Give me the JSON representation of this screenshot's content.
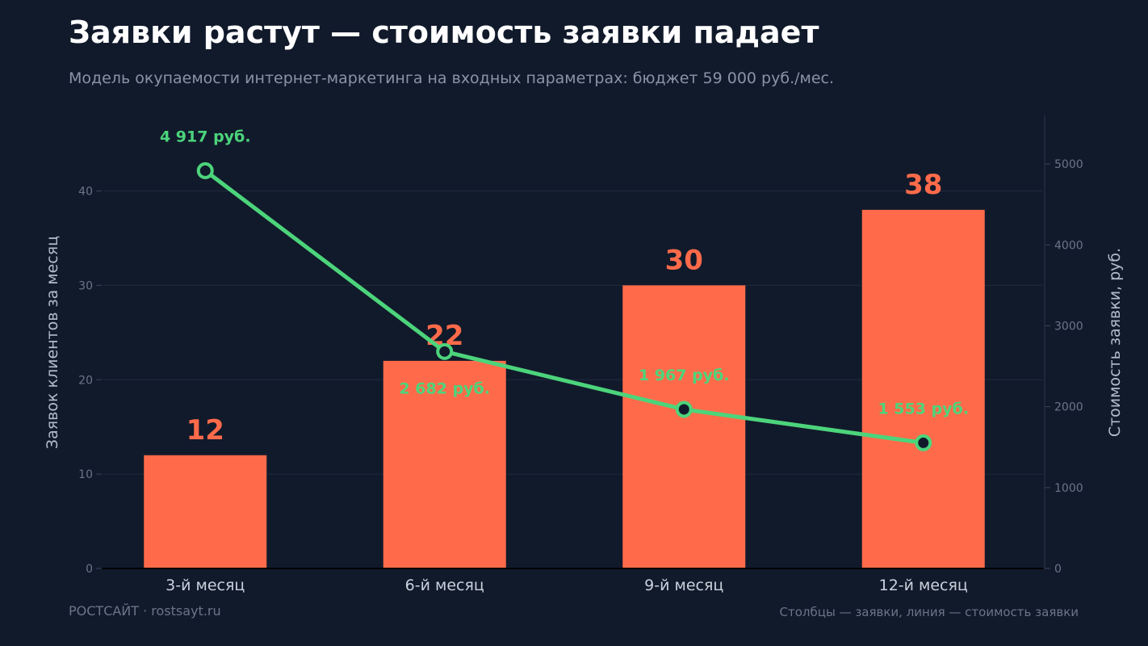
{
  "header": {
    "title": "Заявки растут — стоимость заявки падает",
    "subtitle": "Модель окупаемости интернет-маркетинга на входных параметрах: бюджет 59 000 руб./мес."
  },
  "footer": {
    "brand": "РОСТСАЙТ · rostsayt.ru",
    "legend_note": "Столбцы — заявки, линия — стоимость заявки"
  },
  "colors": {
    "background": "#111a2b",
    "bar": "#ff6b4a",
    "line": "#4cd47b",
    "grid": "#1f2a3d",
    "axis_text": "#6b7587",
    "tick_label": "#c9d1dc"
  },
  "chart_data": {
    "type": "bar",
    "categories": [
      "3-й месяц",
      "6-й месяц",
      "9-й месяц",
      "12-й месяц"
    ],
    "series": [
      {
        "type": "bar",
        "axis": "left",
        "values": [
          12,
          22,
          30,
          38
        ],
        "labels": [
          "12",
          "22",
          "30",
          "38"
        ]
      },
      {
        "type": "line",
        "axis": "right",
        "values": [
          4917,
          2682,
          1967,
          1553
        ],
        "labels": [
          "4 917 руб.",
          "2 682 руб.",
          "1 967 руб.",
          "1 553 руб."
        ]
      }
    ],
    "y_left": {
      "label": "Заявок клиентов за месяц",
      "ylim": [
        0,
        48
      ],
      "ticks": [
        0,
        10,
        20,
        30,
        40
      ]
    },
    "y_right": {
      "label": "Стоимость заявки, руб.",
      "ylim": [
        0,
        5600
      ],
      "ticks": [
        0,
        1000,
        2000,
        3000,
        4000,
        5000
      ]
    },
    "grid": true
  }
}
